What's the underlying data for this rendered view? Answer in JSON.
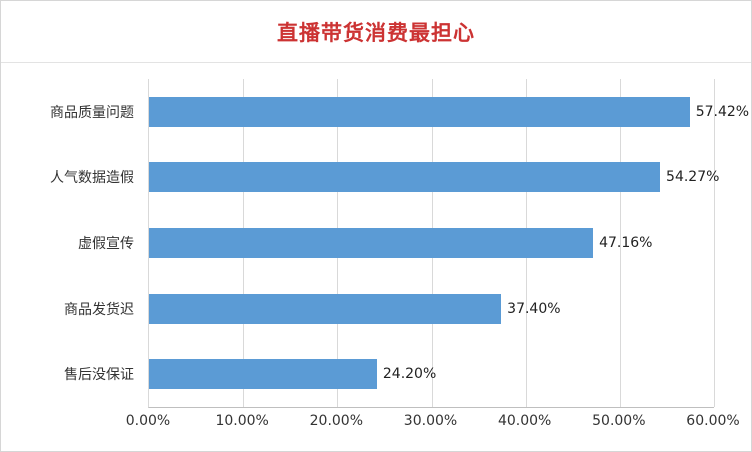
{
  "chart_data": {
    "type": "bar",
    "orientation": "horizontal",
    "title": "直播带货消费最担心",
    "categories": [
      "商品质量问题",
      "人气数据造假",
      "虚假宣传",
      "商品发货迟",
      "售后没保证"
    ],
    "values": [
      57.42,
      54.27,
      47.16,
      37.4,
      24.2
    ],
    "value_labels": [
      "57.42%",
      "54.27%",
      "47.16%",
      "37.40%",
      "24.20%"
    ],
    "x_ticks": [
      "0.00%",
      "10.00%",
      "20.00%",
      "30.00%",
      "40.00%",
      "50.00%",
      "60.00%"
    ],
    "x_tick_values": [
      0,
      10,
      20,
      30,
      40,
      50,
      60
    ],
    "xlim": [
      0,
      60
    ],
    "grid": true,
    "legend": false,
    "colors": {
      "bar": "#5b9bd5",
      "title": "#cc3333",
      "gridline": "#d9d9d9",
      "axis": "#bfbfbf",
      "text": "#333333"
    }
  }
}
